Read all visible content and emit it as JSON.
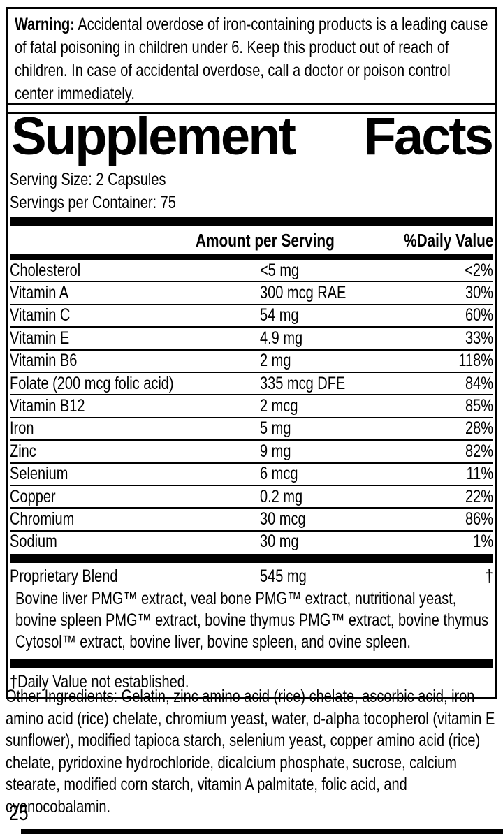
{
  "colors": {
    "text": "#000000",
    "background": "#ffffff",
    "rule": "#000000"
  },
  "warning": {
    "label": "Warning:",
    "text": "Accidental overdose of iron-containing products is a leading cause of fatal poisoning in children under 6. Keep this product out of reach of children. In case of accidental overdose, call a doctor or poison control center immediately."
  },
  "panel": {
    "title": {
      "word1": "Supplement",
      "word2": "Facts"
    },
    "serving_size": "Serving Size: 2 Capsules",
    "servings_per_container": "Servings per Container: 75",
    "header": {
      "amount": "Amount per Serving",
      "daily_value": "%Daily Value"
    },
    "rows": [
      {
        "name": "Cholesterol",
        "amount": "<5 mg",
        "dv": "<2%"
      },
      {
        "name": "Vitamin A",
        "amount": "300 mcg RAE",
        "dv": "30%"
      },
      {
        "name": "Vitamin C",
        "amount": "54 mg",
        "dv": "60%"
      },
      {
        "name": "Vitamin E",
        "amount": "4.9 mg",
        "dv": "33%"
      },
      {
        "name": "Vitamin B6",
        "amount": "2 mg",
        "dv": "118%"
      },
      {
        "name": "Folate (200 mcg folic acid)",
        "amount": "335 mcg DFE",
        "dv": "84%"
      },
      {
        "name": "Vitamin B12",
        "amount": "2 mcg",
        "dv": "85%"
      },
      {
        "name": "Iron",
        "amount": "5 mg",
        "dv": "28%"
      },
      {
        "name": "Zinc",
        "amount": "9 mg",
        "dv": "82%"
      },
      {
        "name": "Selenium",
        "amount": "6 mcg",
        "dv": "11%"
      },
      {
        "name": "Copper",
        "amount": "0.2 mg",
        "dv": "22%"
      },
      {
        "name": "Chromium",
        "amount": "30 mcg",
        "dv": "86%"
      },
      {
        "name": "Sodium",
        "amount": "30 mg",
        "dv": "1%"
      }
    ],
    "blend": {
      "name": "Proprietary Blend",
      "amount": "545 mg",
      "dv": "†",
      "description": "Bovine liver PMG™ extract, veal bone PMG™ extract, nutritional yeast, bovine spleen PMG™ extract, bovine thymus PMG™ extract, bovine thymus Cytosol™ extract, bovine liver, bovine spleen, and ovine spleen."
    },
    "footnote": "†Daily Value not established."
  },
  "other_ingredients": "Other Ingredients: Gelatin, zinc amino acid (rice) chelate, ascorbic acid, iron amino acid (rice) chelate, chromium yeast, water, d-alpha tocopherol (vitamin E sunflower), modified tapioca starch, selenium yeast, copper amino acid (rice) chelate, pyridoxine hydrochloride, dicalcium phosphate, sucrose, calcium stearate, modified corn starch, vitamin A palmitate, folic acid, and cyanocobalamin.",
  "page_number": "25"
}
